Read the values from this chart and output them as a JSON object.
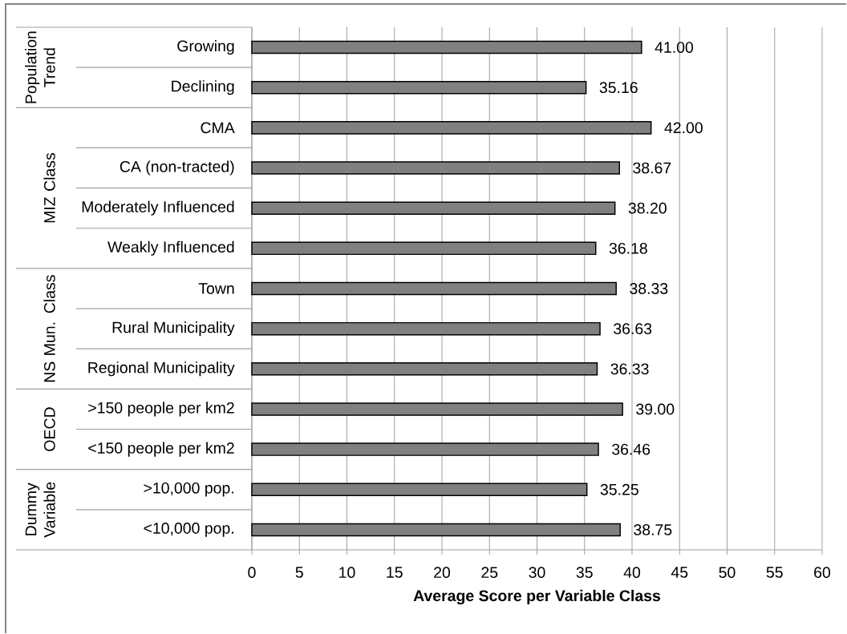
{
  "chart_data": {
    "type": "bar",
    "orientation": "horizontal",
    "xlabel": "Average Score per Variable Class",
    "categories": [
      "Growing",
      "Declining",
      "CMA",
      "CA (non-tracted)",
      "Moderately Influenced",
      "Weakly Influenced",
      "Town",
      "Rural Municipality",
      "Regional Municipality",
      ">150 people per km2",
      "<150 people per km2",
      ">10,000 pop.",
      "<10,000 pop."
    ],
    "values": [
      41.0,
      35.16,
      42.0,
      38.67,
      38.2,
      36.18,
      38.33,
      36.63,
      36.33,
      39.0,
      36.46,
      35.25,
      38.75
    ],
    "value_labels": [
      "41.00",
      "35.16",
      "42.00",
      "38.67",
      "38.20",
      "36.18",
      "38.33",
      "36.63",
      "36.33",
      "39.00",
      "36.46",
      "35.25",
      "38.75"
    ],
    "color": "#808080",
    "xlim": [
      0,
      60
    ],
    "xticks": [
      0,
      5,
      10,
      15,
      20,
      25,
      30,
      35,
      40,
      45,
      50,
      55,
      60
    ],
    "grid": "x",
    "annotations": [
      "Population Trend",
      "MIZ Class",
      "NS Mun. Class",
      "OECD",
      "Dummy Variable"
    ]
  }
}
